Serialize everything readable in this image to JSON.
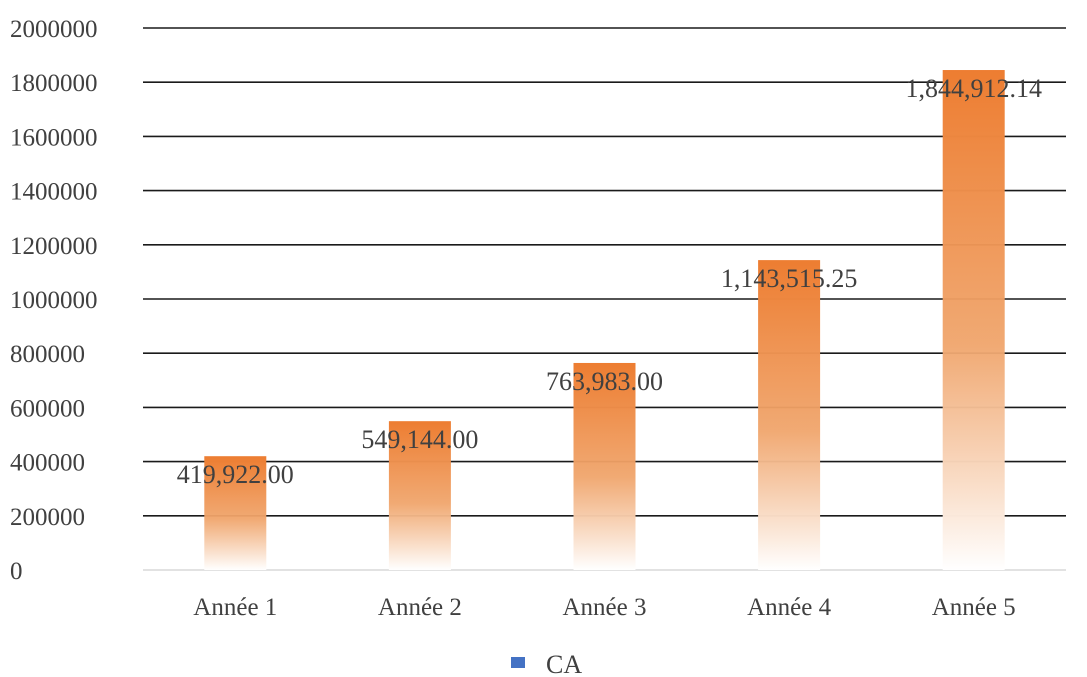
{
  "chart_data": {
    "type": "bar",
    "categories": [
      "Année 1",
      "Année 2",
      "Année 3",
      "Année 4",
      "Année 5"
    ],
    "series": [
      {
        "name": "CA",
        "values": [
          419922.0,
          549144.0,
          763983.0,
          1143515.25,
          1844912.14
        ],
        "data_labels": [
          "419,922.00",
          "549,144.00",
          "763,983.00",
          "1,143,515.25",
          "1,844,912.14"
        ]
      }
    ],
    "title": "",
    "xlabel": "",
    "ylabel": "",
    "ylim": [
      0,
      2000000
    ],
    "yticks": [
      0,
      200000,
      400000,
      600000,
      800000,
      1000000,
      1200000,
      1400000,
      1600000,
      1800000,
      2000000
    ],
    "ytick_labels": [
      "0",
      "200000",
      "400000",
      "600000",
      "800000",
      "1000000",
      "1200000",
      "1400000",
      "1600000",
      "1800000",
      "2000000"
    ],
    "grid": true,
    "legend": {
      "position": "bottom",
      "marker_color": "#4472c4"
    },
    "colors": {
      "bar_top": "#ed7d31",
      "bar_bottom": "#ffffff",
      "gridline": "#1a1a1a"
    }
  }
}
